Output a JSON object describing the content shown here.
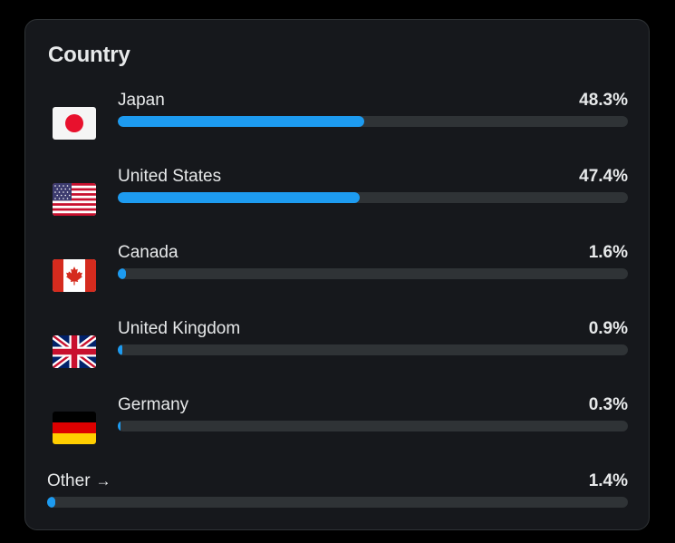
{
  "card": {
    "title": "Country"
  },
  "countries": [
    {
      "name": "Japan",
      "percent_label": "48.3%",
      "percent": 48.3,
      "flag_icon": "japan-flag-icon"
    },
    {
      "name": "United States",
      "percent_label": "47.4%",
      "percent": 47.4,
      "flag_icon": "united-states-flag-icon"
    },
    {
      "name": "Canada",
      "percent_label": "1.6%",
      "percent": 1.6,
      "flag_icon": "canada-flag-icon"
    },
    {
      "name": "United Kingdom",
      "percent_label": "0.9%",
      "percent": 0.9,
      "flag_icon": "united-kingdom-flag-icon"
    },
    {
      "name": "Germany",
      "percent_label": "0.3%",
      "percent": 0.3,
      "flag_icon": "germany-flag-icon"
    }
  ],
  "other": {
    "label": "Other",
    "arrow": "→",
    "percent_label": "1.4%",
    "percent": 1.4
  },
  "colors": {
    "background": "#000000",
    "card": "#16181c",
    "bar_fill": "#1d9bf0",
    "bar_track": "#2f3336",
    "text": "#e7e9ea"
  }
}
